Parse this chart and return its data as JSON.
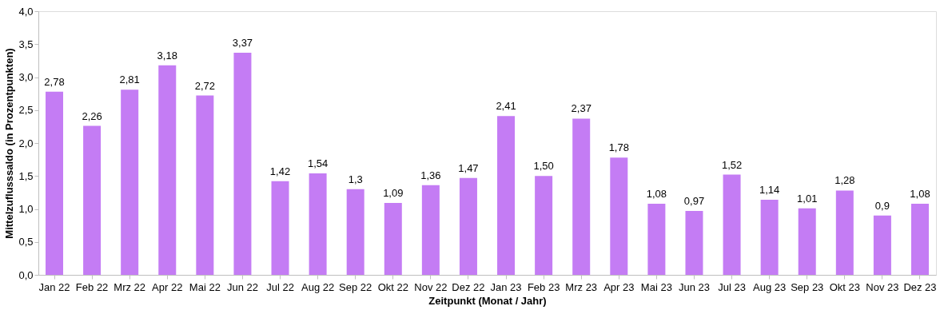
{
  "chart_data": {
    "type": "bar",
    "xlabel": "Zeitpunkt (Monat / Jahr)",
    "ylabel": "Mittelzuflusssaldo (in Prozentpunkten)",
    "categories": [
      "Jan 22",
      "Feb 22",
      "Mrz 22",
      "Apr 22",
      "Mai 22",
      "Jun 22",
      "Jul 22",
      "Aug 22",
      "Sep 22",
      "Okt 22",
      "Nov 22",
      "Dez 22",
      "Jan 23",
      "Feb 23",
      "Mrz 23",
      "Apr 23",
      "Mai 23",
      "Jun 23",
      "Jul 23",
      "Aug 23",
      "Sep 23",
      "Okt 23",
      "Nov 23",
      "Dez 23"
    ],
    "values": [
      2.78,
      2.26,
      2.81,
      3.18,
      2.72,
      3.37,
      1.42,
      1.54,
      1.3,
      1.09,
      1.36,
      1.47,
      2.41,
      1.5,
      2.37,
      1.78,
      1.08,
      0.97,
      1.52,
      1.14,
      1.01,
      1.28,
      0.9,
      1.08
    ],
    "value_labels": [
      "2,78",
      "2,26",
      "2,81",
      "3,18",
      "2,72",
      "3,37",
      "1,42",
      "1,54",
      "1,3",
      "1,09",
      "1,36",
      "1,47",
      "2,41",
      "1,50",
      "2,37",
      "1,78",
      "1,08",
      "0,97",
      "1,52",
      "1,14",
      "1,01",
      "1,28",
      "0,9",
      "1,08"
    ],
    "color": "#c47cf4",
    "ylim": [
      0,
      4
    ],
    "yticks": [
      {
        "value": 0,
        "label": "0,0"
      },
      {
        "value": 0.5,
        "label": "0,5"
      },
      {
        "value": 1,
        "label": "1,0"
      },
      {
        "value": 1.5,
        "label": "1,5"
      },
      {
        "value": 2,
        "label": "2,0"
      },
      {
        "value": 2.5,
        "label": "2,5"
      },
      {
        "value": 3,
        "label": "3,0"
      },
      {
        "value": 3.5,
        "label": "3,5"
      },
      {
        "value": 4,
        "label": "4,0"
      }
    ],
    "grid": false
  }
}
